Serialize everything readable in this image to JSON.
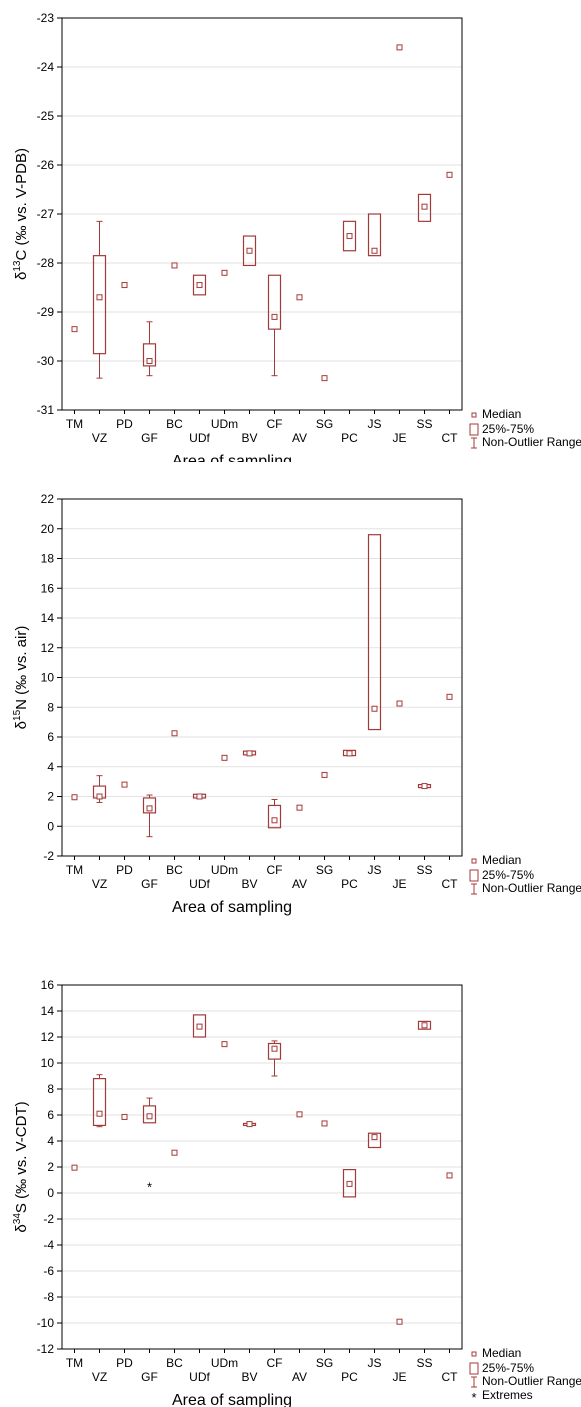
{
  "colors": {
    "mark": "#a33a3a",
    "frame": "#000000",
    "grid": "#e2e2e2"
  },
  "legend": {
    "median": "Median",
    "box": "25%-75%",
    "range": "Non-Outlier Range",
    "extremes": "Extremes"
  },
  "chart_data": [
    {
      "type": "boxplot",
      "xlabel": "Area of sampling",
      "ylabel_prefix": "δ",
      "ylabel_sup": "13",
      "ylabel_rest": "C (‰ vs. V-PDB)",
      "ylim": [
        -31,
        -23
      ],
      "ticks": [
        -31,
        -30,
        -29,
        -28,
        -27,
        -26,
        -25,
        -24,
        -23
      ],
      "grid": true,
      "legend_position": "bottom-right",
      "legend_entries": [
        "Median",
        "25%-75%",
        "Non-Outlier Range"
      ],
      "categories": [
        "TM",
        "VZ",
        "PD",
        "GF",
        "BC",
        "UDf",
        "UDm",
        "BV",
        "CF",
        "AV",
        "SG",
        "PC",
        "JS",
        "JE",
        "SS",
        "CT"
      ],
      "boxes": [
        {
          "median": -29.35
        },
        {
          "median": -28.7,
          "q1": -29.85,
          "q3": -27.85,
          "min": -30.35,
          "max": -27.15
        },
        {
          "median": -28.45
        },
        {
          "median": -30.0,
          "q1": -30.1,
          "q3": -29.65,
          "min": -30.3,
          "max": -29.2
        },
        {
          "median": -28.05
        },
        {
          "median": -28.45,
          "q1": -28.65,
          "q3": -28.25
        },
        {
          "median": -28.2
        },
        {
          "median": -27.75,
          "q1": -28.05,
          "q3": -27.45
        },
        {
          "median": -29.1,
          "q1": -29.35,
          "q3": -28.25,
          "min": -30.3
        },
        {
          "median": -28.7
        },
        {
          "median": -30.35
        },
        {
          "median": -27.45,
          "q1": -27.75,
          "q3": -27.15
        },
        {
          "median": -27.75,
          "q1": -27.85,
          "q3": -27.0
        },
        {
          "median": -23.6
        },
        {
          "median": -26.85,
          "q1": -27.15,
          "q3": -26.6
        },
        {
          "median": -26.2
        }
      ]
    },
    {
      "type": "boxplot",
      "xlabel": "Area of sampling",
      "ylabel_prefix": "δ",
      "ylabel_sup": "15",
      "ylabel_rest": "N (‰ vs. air)",
      "ylim": [
        -2,
        22
      ],
      "ticks": [
        -2,
        0,
        2,
        4,
        6,
        8,
        10,
        12,
        14,
        16,
        18,
        20,
        22
      ],
      "grid": true,
      "legend_position": "bottom-right",
      "legend_entries": [
        "Median",
        "25%-75%",
        "Non-Outlier Range"
      ],
      "categories": [
        "TM",
        "VZ",
        "PD",
        "GF",
        "BC",
        "UDf",
        "UDm",
        "BV",
        "CF",
        "AV",
        "SG",
        "PC",
        "JS",
        "JE",
        "SS",
        "CT"
      ],
      "boxes": [
        {
          "median": 1.95
        },
        {
          "median": 2.0,
          "q1": 1.9,
          "q3": 2.7,
          "min": 1.6,
          "max": 3.4
        },
        {
          "median": 2.8
        },
        {
          "median": 1.2,
          "q1": 0.9,
          "q3": 1.9,
          "min": -0.7,
          "max": 2.1
        },
        {
          "median": 6.25
        },
        {
          "median": 2.0,
          "q1": 1.9,
          "q3": 2.15
        },
        {
          "median": 4.6
        },
        {
          "median": 4.9,
          "q1": 4.8,
          "q3": 5.05
        },
        {
          "median": 0.4,
          "q1": -0.1,
          "q3": 1.4,
          "max": 1.8
        },
        {
          "median": 1.25
        },
        {
          "median": 3.45
        },
        {
          "median": 4.9,
          "q1": 4.75,
          "q3": 5.1
        },
        {
          "median": 7.9,
          "q1": 6.5,
          "q3": 19.6
        },
        {
          "median": 8.25
        },
        {
          "median": 2.7,
          "q1": 2.6,
          "q3": 2.8
        },
        {
          "median": 8.7
        }
      ]
    },
    {
      "type": "boxplot",
      "xlabel": "Area of sampling",
      "ylabel_prefix": "δ",
      "ylabel_sup": "34",
      "ylabel_rest": "S (‰ vs. V-CDT)",
      "ylim": [
        -12,
        16
      ],
      "ticks": [
        -12,
        -10,
        -8,
        -6,
        -4,
        -2,
        0,
        2,
        4,
        6,
        8,
        10,
        12,
        14,
        16
      ],
      "grid": true,
      "legend_position": "bottom-right",
      "legend_entries": [
        "Median",
        "25%-75%",
        "Non-Outlier Range",
        "Extremes"
      ],
      "categories": [
        "TM",
        "VZ",
        "PD",
        "GF",
        "BC",
        "UDf",
        "UDm",
        "BV",
        "CF",
        "AV",
        "SG",
        "PC",
        "JS",
        "JE",
        "SS",
        "CT"
      ],
      "boxes": [
        {
          "median": 1.95
        },
        {
          "median": 6.1,
          "q1": 5.2,
          "q3": 8.8,
          "min": 5.1,
          "max": 9.1
        },
        {
          "median": 5.85
        },
        {
          "median": 5.9,
          "q1": 5.4,
          "q3": 6.7,
          "max": 7.3,
          "extremes": [
            0.5
          ]
        },
        {
          "median": 3.1
        },
        {
          "median": 12.8,
          "q1": 12.0,
          "q3": 13.7
        },
        {
          "median": 11.45
        },
        {
          "median": 5.3,
          "q1": 5.25,
          "q3": 5.35
        },
        {
          "median": 11.1,
          "q1": 10.3,
          "q3": 11.5,
          "min": 9.0,
          "max": 11.7
        },
        {
          "median": 6.05
        },
        {
          "median": 5.35
        },
        {
          "median": 0.7,
          "q1": -0.3,
          "q3": 1.8
        },
        {
          "median": 4.3,
          "q1": 3.5,
          "q3": 4.6
        },
        {
          "median": -9.9
        },
        {
          "median": 12.9,
          "q1": 12.6,
          "q3": 13.2
        },
        {
          "median": 1.35
        }
      ]
    }
  ]
}
